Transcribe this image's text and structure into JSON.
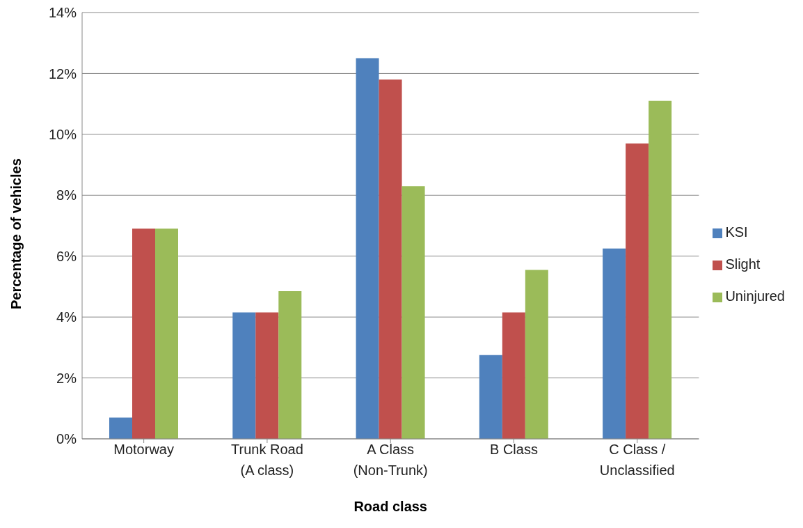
{
  "chart_data": {
    "type": "bar",
    "xlabel": "Road class",
    "ylabel": "Percentage of vehicles",
    "categories": [
      "Motorway",
      "Trunk Road (A class)",
      "A Class (Non-Trunk)",
      "B Class",
      "C Class / Unclassified"
    ],
    "series": [
      {
        "name": "KSI",
        "color": "#4f81bd",
        "values": [
          0.7,
          4.15,
          12.5,
          2.75,
          6.25
        ]
      },
      {
        "name": "Slight",
        "color": "#c0504d",
        "values": [
          6.9,
          4.15,
          11.8,
          4.15,
          9.7
        ]
      },
      {
        "name": "Uninjured",
        "color": "#9bbb59",
        "values": [
          6.9,
          4.85,
          8.3,
          5.55,
          11.1
        ]
      }
    ],
    "ylim": [
      0,
      14
    ],
    "yticks": [
      {
        "value": 0,
        "label": "0%"
      },
      {
        "value": 2,
        "label": "2%"
      },
      {
        "value": 4,
        "label": "4%"
      },
      {
        "value": 6,
        "label": "6%"
      },
      {
        "value": 8,
        "label": "8%"
      },
      {
        "value": 10,
        "label": "10%"
      },
      {
        "value": 12,
        "label": "12%"
      },
      {
        "value": 14,
        "label": "14%"
      }
    ],
    "grid": "y",
    "legend": "right"
  }
}
